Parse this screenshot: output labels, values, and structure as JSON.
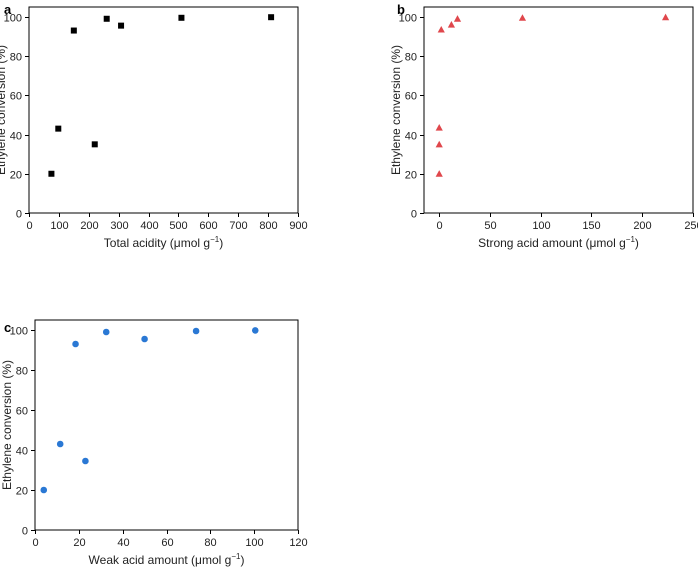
{
  "chart_data": [
    {
      "panel": "a",
      "type": "scatter",
      "marker": "square",
      "color": "#000000",
      "xlabel": "Total acidity (μmol g",
      "xlabel_sup": "−1",
      "xlabel_end": ")",
      "ylabel": "Ethylene conversion (%)",
      "xlim": [
        0,
        900
      ],
      "ylim": [
        0,
        105
      ],
      "xticks": [
        0,
        100,
        200,
        300,
        400,
        500,
        600,
        700,
        800,
        900
      ],
      "yticks": [
        0,
        20,
        40,
        60,
        80,
        100
      ],
      "points": [
        {
          "x": 75,
          "y": 20
        },
        {
          "x": 98,
          "y": 43
        },
        {
          "x": 150,
          "y": 93
        },
        {
          "x": 220,
          "y": 35
        },
        {
          "x": 260,
          "y": 99
        },
        {
          "x": 308,
          "y": 95.5
        },
        {
          "x": 510,
          "y": 99.5
        },
        {
          "x": 810,
          "y": 99.8
        }
      ]
    },
    {
      "panel": "b",
      "type": "scatter",
      "marker": "triangle",
      "color": "#e0474c",
      "xlabel": "Strong acid amount (μmol g",
      "xlabel_sup": "−1",
      "xlabel_end": ")",
      "ylabel": "Ethylene conversion (%)",
      "xlim": [
        -15,
        250
      ],
      "ylim": [
        0,
        105
      ],
      "xticks": [
        0,
        50,
        100,
        150,
        200,
        250
      ],
      "yticks": [
        0,
        20,
        40,
        60,
        80,
        100
      ],
      "points": [
        {
          "x": 0,
          "y": 20
        },
        {
          "x": 0,
          "y": 35
        },
        {
          "x": 0,
          "y": 43.5
        },
        {
          "x": 2,
          "y": 93.5
        },
        {
          "x": 12,
          "y": 96
        },
        {
          "x": 18,
          "y": 99
        },
        {
          "x": 82,
          "y": 99.5
        },
        {
          "x": 223,
          "y": 99.8
        }
      ]
    },
    {
      "panel": "c",
      "type": "scatter",
      "marker": "circle",
      "color": "#2a78d4",
      "xlabel": "Weak acid amount (μmol g",
      "xlabel_sup": "−1",
      "xlabel_end": ")",
      "ylabel": "Ethylene conversion (%)",
      "xlim": [
        0,
        120
      ],
      "ylim": [
        0,
        105
      ],
      "xticks": [
        0,
        20,
        40,
        60,
        80,
        100,
        120
      ],
      "yticks": [
        0,
        20,
        40,
        60,
        80,
        100
      ],
      "points": [
        {
          "x": 4,
          "y": 20
        },
        {
          "x": 11.5,
          "y": 43
        },
        {
          "x": 18.5,
          "y": 93
        },
        {
          "x": 23,
          "y": 34.5
        },
        {
          "x": 32.5,
          "y": 99
        },
        {
          "x": 50,
          "y": 95.5
        },
        {
          "x": 73.5,
          "y": 99.5
        },
        {
          "x": 100.5,
          "y": 99.8
        }
      ]
    }
  ]
}
